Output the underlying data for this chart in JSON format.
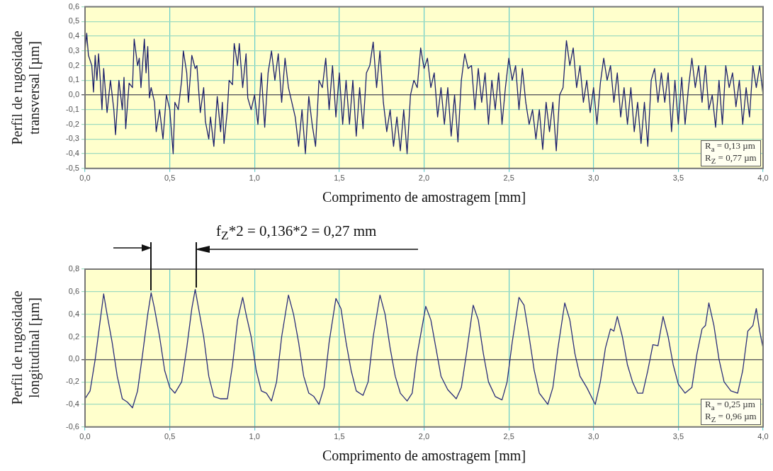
{
  "chart_data": [
    {
      "type": "line",
      "xlabel": "Comprimento de amostragem [mm]",
      "ylabel": "Perfil de rugosidade transversal [µm]",
      "annotations": [
        "R$_{a}$ = 0,13 µm",
        "R$_{Z}$ = 0,77 µm"
      ],
      "xlim": [
        0,
        4
      ],
      "xticks": [
        {
          "value": 0,
          "label": "0,0"
        },
        {
          "value": 0.5,
          "label": "0,5"
        },
        {
          "value": 1,
          "label": "1,0"
        },
        {
          "value": 1.5,
          "label": "1,5"
        },
        {
          "value": 2,
          "label": "2,0"
        },
        {
          "value": 2.5,
          "label": "2,5"
        },
        {
          "value": 3,
          "label": "3,0"
        },
        {
          "value": 3.5,
          "label": "3,5"
        },
        {
          "value": 4,
          "label": "4,0"
        }
      ],
      "ylim": [
        -0.5,
        0.6
      ],
      "yticks": [
        {
          "value": -0.5,
          "label": "-0,5"
        },
        {
          "value": -0.4,
          "label": "-0,4"
        },
        {
          "value": -0.3,
          "label": "-0,3"
        },
        {
          "value": -0.2,
          "label": "-0,2"
        },
        {
          "value": -0.1,
          "label": "-0,1"
        },
        {
          "value": 0,
          "label": "0,0"
        },
        {
          "value": 0.1,
          "label": "0,1"
        },
        {
          "value": 0.2,
          "label": "0,2"
        },
        {
          "value": 0.3,
          "label": "0,3"
        },
        {
          "value": 0.4,
          "label": "0,4"
        },
        {
          "value": 0.5,
          "label": "0,5"
        },
        {
          "value": 0.6,
          "label": "0,6"
        }
      ],
      "grid": true,
      "x": [
        0,
        0.01,
        0.02,
        0.04,
        0.05,
        0.06,
        0.07,
        0.08,
        0.09,
        0.1,
        0.11,
        0.13,
        0.15,
        0.17,
        0.18,
        0.2,
        0.22,
        0.23,
        0.24,
        0.26,
        0.28,
        0.29,
        0.31,
        0.32,
        0.33,
        0.35,
        0.36,
        0.37,
        0.38,
        0.39,
        0.41,
        0.42,
        0.44,
        0.46,
        0.48,
        0.5,
        0.52,
        0.53,
        0.55,
        0.57,
        0.58,
        0.6,
        0.61,
        0.63,
        0.65,
        0.66,
        0.68,
        0.7,
        0.71,
        0.73,
        0.74,
        0.76,
        0.78,
        0.8,
        0.81,
        0.82,
        0.84,
        0.85,
        0.87,
        0.88,
        0.9,
        0.91,
        0.93,
        0.95,
        0.96,
        0.98,
        1,
        1.02,
        1.04,
        1.06,
        1.08,
        1.1,
        1.12,
        1.14,
        1.16,
        1.18,
        1.2,
        1.22,
        1.24,
        1.26,
        1.28,
        1.3,
        1.32,
        1.34,
        1.36,
        1.38,
        1.4,
        1.42,
        1.44,
        1.46,
        1.48,
        1.5,
        1.52,
        1.54,
        1.56,
        1.58,
        1.6,
        1.62,
        1.64,
        1.66,
        1.68,
        1.7,
        1.72,
        1.74,
        1.76,
        1.78,
        1.8,
        1.82,
        1.84,
        1.86,
        1.88,
        1.9,
        1.92,
        1.94,
        1.96,
        1.98,
        2,
        2.02,
        2.04,
        2.06,
        2.08,
        2.1,
        2.12,
        2.14,
        2.16,
        2.18,
        2.2,
        2.22,
        2.24,
        2.26,
        2.28,
        2.3,
        2.32,
        2.34,
        2.36,
        2.38,
        2.4,
        2.42,
        2.44,
        2.46,
        2.48,
        2.5,
        2.52,
        2.54,
        2.56,
        2.58,
        2.6,
        2.62,
        2.64,
        2.66,
        2.68,
        2.7,
        2.72,
        2.74,
        2.76,
        2.78,
        2.8,
        2.82,
        2.84,
        2.86,
        2.88,
        2.9,
        2.92,
        2.94,
        2.96,
        2.98,
        3,
        3.02,
        3.04,
        3.06,
        3.08,
        3.1,
        3.12,
        3.14,
        3.16,
        3.18,
        3.2,
        3.22,
        3.24,
        3.26,
        3.28,
        3.3,
        3.32,
        3.34,
        3.36,
        3.38,
        3.4,
        3.42,
        3.44,
        3.46,
        3.48,
        3.5,
        3.52,
        3.54,
        3.56,
        3.58,
        3.6,
        3.62,
        3.64,
        3.66,
        3.68,
        3.7,
        3.72,
        3.74,
        3.76,
        3.78,
        3.8,
        3.82,
        3.84,
        3.86,
        3.88,
        3.9,
        3.92,
        3.94,
        3.96,
        3.98,
        4
      ],
      "series": [
        {
          "color": "#1c1f6b",
          "values": [
            0.3,
            0.42,
            0.27,
            0.2,
            0.02,
            0.27,
            0.1,
            0.28,
            0.1,
            -0.1,
            0.18,
            -0.12,
            0.1,
            -0.1,
            -0.27,
            0.1,
            -0.1,
            0.12,
            -0.23,
            0.08,
            0.05,
            0.38,
            0.2,
            0.25,
            0.05,
            0.38,
            0.15,
            0.33,
            -0.02,
            0.05,
            -0.05,
            -0.25,
            -0.1,
            -0.3,
            0,
            -0.1,
            -0.4,
            -0.05,
            -0.1,
            0.1,
            0.3,
            0.15,
            -0.05,
            0.27,
            0.18,
            0.2,
            -0.12,
            0.05,
            -0.18,
            -0.3,
            -0.15,
            -0.35,
            -0.01,
            -0.25,
            -0.05,
            -0.33,
            -0.1,
            0.1,
            0.07,
            0.35,
            0.2,
            0.35,
            0.05,
            0.28,
            -0.02,
            -0.1,
            0,
            -0.2,
            0.15,
            -0.22,
            0.15,
            0.3,
            0.1,
            0.28,
            -0.05,
            0.25,
            0.05,
            -0.05,
            -0.15,
            -0.35,
            -0.1,
            -0.4,
            -0.01,
            -0.2,
            -0.35,
            0.1,
            0.05,
            0.25,
            -0.1,
            0.2,
            -0.15,
            0.15,
            -0.2,
            0.1,
            -0.2,
            0.1,
            -0.28,
            0.05,
            -0.23,
            0.15,
            0.2,
            0.36,
            0.05,
            0.3,
            -0.05,
            -0.25,
            -0.1,
            -0.35,
            -0.15,
            -0.38,
            -0.1,
            -0.4,
            0,
            0.1,
            0.05,
            0.32,
            0.18,
            0.25,
            0.05,
            0.15,
            -0.15,
            0.05,
            -0.2,
            0.05,
            -0.28,
            0,
            -0.32,
            0.1,
            0.28,
            0.18,
            0.2,
            -0.1,
            0.18,
            -0.05,
            0.15,
            -0.2,
            0.1,
            -0.1,
            0.15,
            -0.2,
            0.05,
            0.25,
            0.1,
            0.2,
            -0.1,
            0.18,
            -0.05,
            -0.2,
            -0.1,
            -0.3,
            -0.1,
            -0.37,
            -0.05,
            -0.25,
            -0.05,
            -0.38,
            0,
            0.05,
            0.37,
            0.2,
            0.32,
            0.05,
            0.2,
            -0.05,
            0.1,
            -0.12,
            0.05,
            -0.2,
            0.08,
            0.25,
            0.1,
            0.2,
            -0.05,
            0.15,
            -0.15,
            0.05,
            -0.2,
            0.05,
            -0.25,
            -0.05,
            -0.33,
            -0.05,
            -0.35,
            0.1,
            0.18,
            -0.05,
            0.15,
            -0.05,
            0.15,
            -0.25,
            0.1,
            -0.2,
            0.12,
            -0.2,
            0.05,
            0.25,
            0.05,
            0.2,
            -0.05,
            0.2,
            -0.1,
            0,
            -0.22,
            0.1,
            -0.2,
            0.2,
            0.05,
            0.15,
            -0.08,
            0.1,
            -0.2,
            0.05,
            -0.15,
            0.2,
            0.05,
            0.2,
            0
          ]
        }
      ]
    },
    {
      "type": "line",
      "xlabel": "Comprimento de amostragem [mm]",
      "ylabel": "Perfil de rugosidade longitudinal [µm]",
      "annotations": [
        "f$_{Z}$*2 = 0,136*2 = 0,27 mm",
        "R$_{a}$ = 0,25 µm",
        "R$_{Z}$ = 0,96 µm"
      ],
      "xlim": [
        0,
        4
      ],
      "xticks": [
        {
          "value": 0,
          "label": "0,0"
        },
        {
          "value": 0.5,
          "label": "0,5"
        },
        {
          "value": 1,
          "label": "1,0"
        },
        {
          "value": 1.5,
          "label": "1,5"
        },
        {
          "value": 2,
          "label": "2,0"
        },
        {
          "value": 2.5,
          "label": "2,5"
        },
        {
          "value": 3,
          "label": "3,0"
        },
        {
          "value": 3.5,
          "label": "3,5"
        },
        {
          "value": 4,
          "label": "4,0"
        }
      ],
      "ylim": [
        -0.6,
        0.8
      ],
      "yticks": [
        {
          "value": -0.6,
          "label": "-0,6"
        },
        {
          "value": -0.4,
          "label": "-0,4"
        },
        {
          "value": -0.2,
          "label": "-0,2"
        },
        {
          "value": 0,
          "label": "0,0"
        },
        {
          "value": 0.2,
          "label": "0,2"
        },
        {
          "value": 0.4,
          "label": "0,4"
        },
        {
          "value": 0.6,
          "label": "0,6"
        },
        {
          "value": 0.8,
          "label": "0,8"
        }
      ],
      "grid": true,
      "x": [
        0,
        0.03,
        0.06,
        0.09,
        0.11,
        0.13,
        0.16,
        0.19,
        0.22,
        0.25,
        0.28,
        0.31,
        0.34,
        0.37,
        0.39,
        0.41,
        0.44,
        0.47,
        0.5,
        0.53,
        0.57,
        0.6,
        0.63,
        0.65,
        0.67,
        0.7,
        0.73,
        0.76,
        0.8,
        0.84,
        0.87,
        0.9,
        0.93,
        0.95,
        0.98,
        1.01,
        1.04,
        1.07,
        1.1,
        1.13,
        1.16,
        1.2,
        1.23,
        1.26,
        1.29,
        1.32,
        1.35,
        1.38,
        1.41,
        1.44,
        1.48,
        1.51,
        1.54,
        1.57,
        1.6,
        1.64,
        1.67,
        1.7,
        1.74,
        1.77,
        1.8,
        1.83,
        1.86,
        1.9,
        1.93,
        1.96,
        2.01,
        2.04,
        2.07,
        2.1,
        2.14,
        2.19,
        2.22,
        2.25,
        2.29,
        2.32,
        2.35,
        2.38,
        2.42,
        2.46,
        2.49,
        2.52,
        2.56,
        2.59,
        2.62,
        2.65,
        2.68,
        2.73,
        2.76,
        2.79,
        2.83,
        2.86,
        2.89,
        2.92,
        2.96,
        3.01,
        3.04,
        3.07,
        3.1,
        3.12,
        3.14,
        3.17,
        3.2,
        3.23,
        3.26,
        3.29,
        3.32,
        3.35,
        3.38,
        3.41,
        3.44,
        3.47,
        3.5,
        3.54,
        3.58,
        3.61,
        3.64,
        3.66,
        3.68,
        3.71,
        3.74,
        3.77,
        3.81,
        3.85,
        3.88,
        3.91,
        3.94,
        3.96,
        3.98,
        4
      ],
      "series": [
        {
          "color": "#2a2d7a",
          "values": [
            -0.35,
            -0.28,
            0,
            0.35,
            0.58,
            0.4,
            0.15,
            -0.15,
            -0.35,
            -0.38,
            -0.43,
            -0.28,
            0.05,
            0.4,
            0.59,
            0.45,
            0.2,
            -0.1,
            -0.25,
            -0.3,
            -0.2,
            0.1,
            0.45,
            0.62,
            0.45,
            0.2,
            -0.15,
            -0.33,
            -0.35,
            -0.35,
            -0.05,
            0.35,
            0.55,
            0.4,
            0.2,
            -0.1,
            -0.28,
            -0.3,
            -0.37,
            -0.2,
            0.2,
            0.57,
            0.4,
            0.15,
            -0.15,
            -0.3,
            -0.33,
            -0.4,
            -0.25,
            0.15,
            0.54,
            0.45,
            0.15,
            -0.1,
            -0.28,
            -0.32,
            -0.2,
            0.2,
            0.57,
            0.4,
            0.1,
            -0.15,
            -0.3,
            -0.37,
            -0.3,
            0.05,
            0.47,
            0.35,
            0.1,
            -0.15,
            -0.27,
            -0.35,
            -0.25,
            0.05,
            0.48,
            0.35,
            0.05,
            -0.2,
            -0.33,
            -0.36,
            -0.2,
            0.15,
            0.55,
            0.48,
            0.2,
            -0.1,
            -0.3,
            -0.4,
            -0.25,
            0.1,
            0.5,
            0.35,
            0.05,
            -0.15,
            -0.25,
            -0.4,
            -0.2,
            0.1,
            0.27,
            0.25,
            0.38,
            0.2,
            -0.05,
            -0.2,
            -0.3,
            -0.3,
            -0.1,
            0.13,
            0.12,
            0.38,
            0.2,
            -0.05,
            -0.22,
            -0.3,
            -0.25,
            0.05,
            0.27,
            0.3,
            0.5,
            0.3,
            0,
            -0.2,
            -0.28,
            -0.3,
            -0.1,
            0.25,
            0.3,
            0.45,
            0.25,
            0.1
          ]
        }
      ]
    }
  ]
}
